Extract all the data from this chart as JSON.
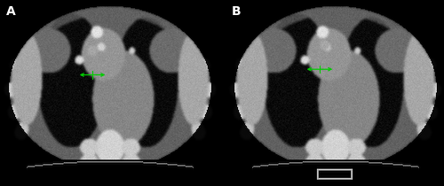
{
  "fig_width": 5.0,
  "fig_height": 2.1,
  "dpi": 100,
  "background_color": "#000000",
  "label_A": "A",
  "label_B": "B",
  "label_color": "#ffffff",
  "label_fontsize": 10,
  "green_color": "#00cc00",
  "seed": 1234
}
